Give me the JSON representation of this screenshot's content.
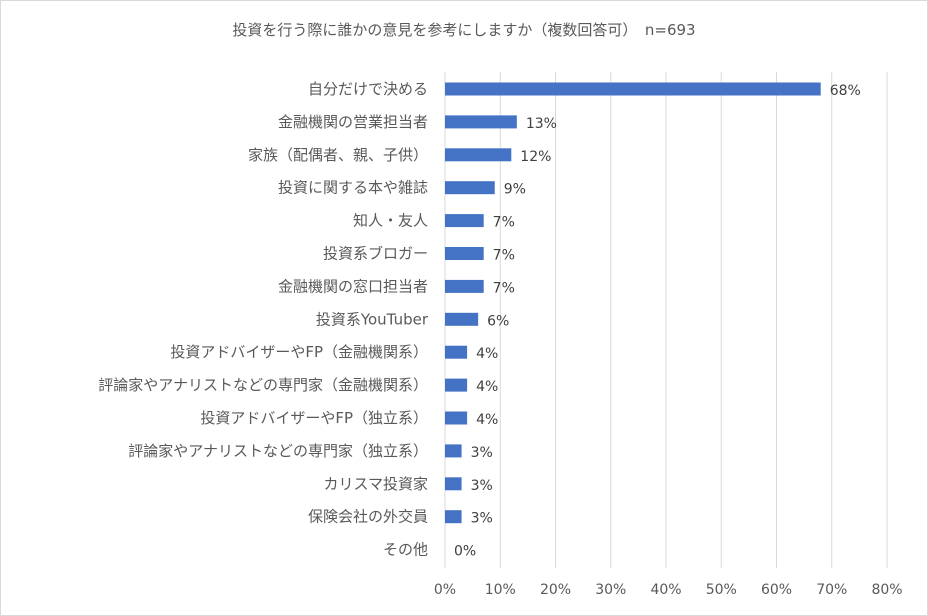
{
  "chart_data": {
    "type": "bar",
    "orientation": "horizontal",
    "title": "投資を行う際に誰かの意見を参考にしますか（複数回答可）　n=693",
    "categories": [
      "自分だけで決める",
      "金融機関の営業担当者",
      "家族（配偶者、親、子供）",
      "投資に関する本や雑誌",
      "知人・友人",
      "投資系ブロガー",
      "金融機関の窓口担当者",
      "投資系YouTuber",
      "投資アドバイザーやFP（金融機関系）",
      "評論家やアナリストなどの専門家（金融機関系）",
      "投資アドバイザーやFP（独立系）",
      "評論家やアナリストなどの専門家（独立系）",
      "カリスマ投資家",
      "保険会社の外交員",
      "その他"
    ],
    "values": [
      68,
      13,
      12,
      9,
      7,
      7,
      7,
      6,
      4,
      4,
      4,
      3,
      3,
      3,
      0
    ],
    "data_labels": [
      "68%",
      "13%",
      "12%",
      "9%",
      "7%",
      "7%",
      "7%",
      "6%",
      "4%",
      "4%",
      "4%",
      "3%",
      "3%",
      "3%",
      "0%"
    ],
    "xlim": [
      0,
      80
    ],
    "xticks": [
      0,
      10,
      20,
      30,
      40,
      50,
      60,
      70,
      80
    ],
    "xtick_labels": [
      "0%",
      "10%",
      "20%",
      "30%",
      "40%",
      "50%",
      "60%",
      "70%",
      "80%"
    ],
    "grid": true,
    "legend": "none",
    "bar_color": "#4472c4"
  }
}
